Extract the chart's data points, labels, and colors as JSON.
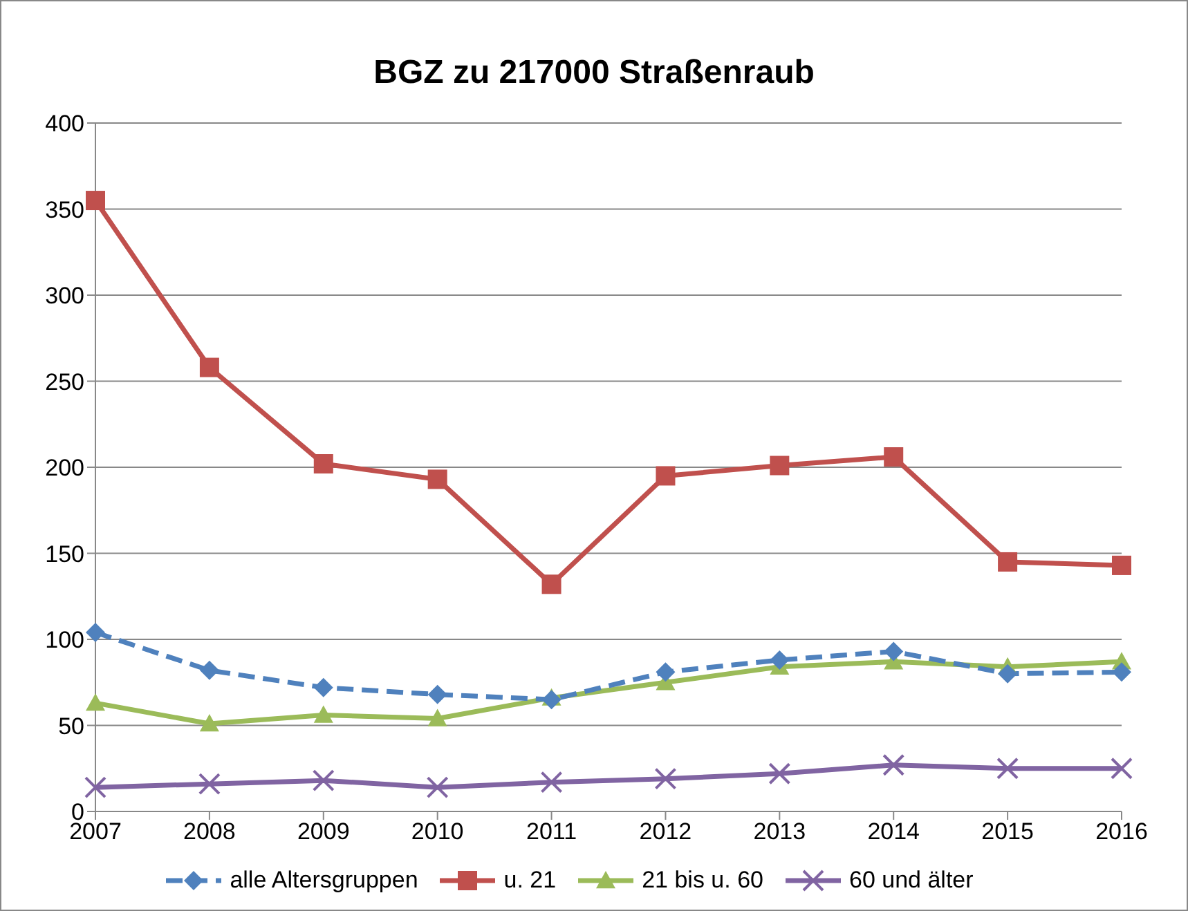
{
  "chart_data": {
    "type": "line",
    "title": "BGZ zu 217000 Straßenraub",
    "categories": [
      "2007",
      "2008",
      "2009",
      "2010",
      "2011",
      "2012",
      "2013",
      "2014",
      "2015",
      "2016"
    ],
    "series": [
      {
        "name": "alle Altersgruppen",
        "color": "#4f81bd",
        "marker": "diamond",
        "line_style": "dashed",
        "values": [
          104,
          82,
          72,
          68,
          65,
          81,
          88,
          93,
          80,
          81
        ]
      },
      {
        "name": "u. 21",
        "color": "#c0504d",
        "marker": "square",
        "line_style": "solid",
        "values": [
          355,
          258,
          202,
          193,
          132,
          195,
          201,
          206,
          145,
          143
        ]
      },
      {
        "name": "21 bis u. 60",
        "color": "#9bbb59",
        "marker": "triangle",
        "line_style": "solid",
        "values": [
          63,
          51,
          56,
          54,
          66,
          75,
          84,
          87,
          84,
          87
        ]
      },
      {
        "name": "60 und älter",
        "color": "#8064a2",
        "marker": "cross",
        "line_style": "solid",
        "values": [
          14,
          16,
          18,
          14,
          17,
          19,
          22,
          27,
          25,
          25
        ]
      }
    ],
    "ylim": [
      0,
      400
    ],
    "yticks": [
      0,
      50,
      100,
      150,
      200,
      250,
      300,
      350,
      400
    ],
    "grid": "y",
    "legend": "bottom"
  }
}
